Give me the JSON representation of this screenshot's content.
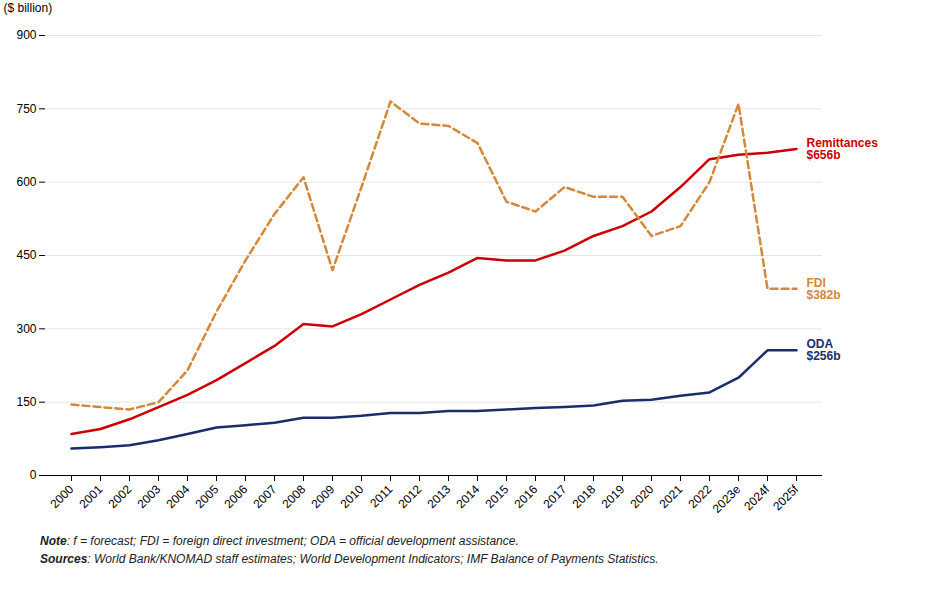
{
  "chart_data": {
    "type": "line",
    "categories": [
      "2000",
      "2001",
      "2002",
      "2003",
      "2004",
      "2005",
      "2006",
      "2007",
      "2008",
      "2009",
      "2010",
      "2011",
      "2012",
      "2013",
      "2014",
      "2015",
      "2016",
      "2017",
      "2018",
      "2019",
      "2020",
      "2021",
      "2022",
      "2023e",
      "2024f",
      "2025f"
    ],
    "series": [
      {
        "name": "Remittances",
        "label": "$656b",
        "color": "#cc0000",
        "line_style": "solid",
        "values": [
          85,
          95,
          115,
          140,
          165,
          195,
          230,
          265,
          310,
          305,
          330,
          360,
          390,
          415,
          445,
          440,
          440,
          460,
          490,
          510,
          540,
          590,
          647,
          656,
          660,
          668
        ]
      },
      {
        "name": "FDI",
        "label": "$382b",
        "color": "#d4883a",
        "line_style": "dashed",
        "values": [
          145,
          140,
          135,
          150,
          215,
          335,
          440,
          535,
          610,
          420,
          590,
          765,
          720,
          715,
          680,
          560,
          540,
          590,
          570,
          570,
          490,
          510,
          600,
          760,
          382,
          382
        ]
      },
      {
        "name": "ODA",
        "label": "$256b",
        "color": "#1a2d6b",
        "line_style": "solid",
        "values": [
          55,
          58,
          62,
          72,
          85,
          98,
          103,
          108,
          118,
          118,
          122,
          128,
          128,
          132,
          132,
          135,
          138,
          140,
          143,
          153,
          155,
          163,
          170,
          200,
          256,
          256
        ]
      }
    ],
    "ylabel": "($ billion)",
    "ylim": [
      0,
      900
    ],
    "yticks": [
      0,
      150,
      300,
      450,
      600,
      750,
      900
    ],
    "grid": true,
    "notes": [
      {
        "label": "Note",
        "text": ": f = forecast; FDI = foreign direct investment; ODA = official development assistance."
      },
      {
        "label": "Sources",
        "text": ": World Bank/KNOMAD staff estimates; World Development Indicators; IMF Balance of Payments Statistics."
      }
    ]
  }
}
